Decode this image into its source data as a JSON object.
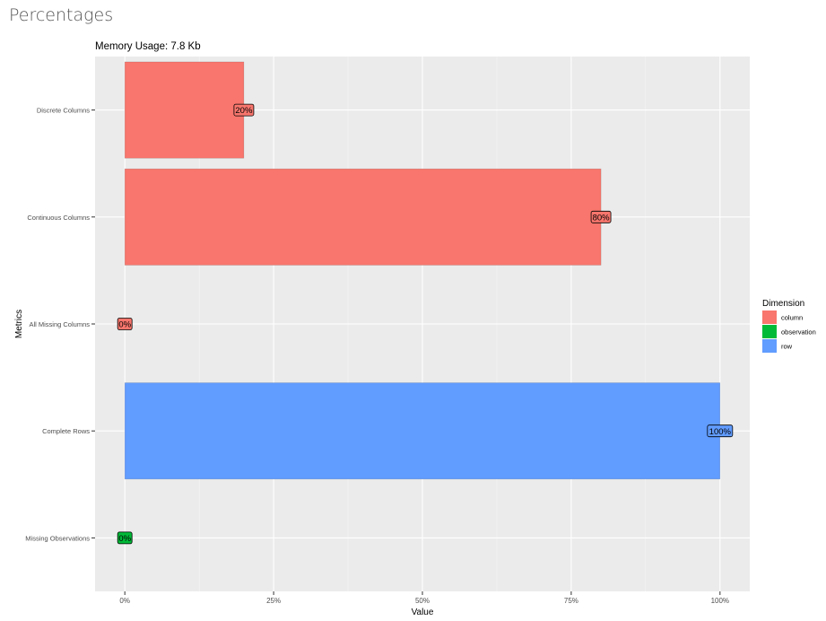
{
  "page": {
    "heading": "Percentages"
  },
  "chart_data": {
    "type": "bar",
    "orientation": "horizontal",
    "title": "Memory Usage: 7.8 Kb",
    "xlabel": "Value",
    "ylabel": "Metrics",
    "xlim": [
      -0.05,
      1.05
    ],
    "x_ticks": [
      0,
      0.25,
      0.5,
      0.75,
      1.0
    ],
    "x_tick_labels": [
      "0%",
      "25%",
      "50%",
      "75%",
      "100%"
    ],
    "grid": true,
    "legend": {
      "title": "Dimension",
      "position": "right",
      "entries": [
        {
          "name": "column",
          "color": "#F8766D"
        },
        {
          "name": "observation",
          "color": "#00BA38"
        },
        {
          "name": "row",
          "color": "#619CFF"
        }
      ]
    },
    "bars": [
      {
        "category": "Discrete Columns",
        "value": 0.2,
        "label": "20%",
        "dimension": "column"
      },
      {
        "category": "Continuous Columns",
        "value": 0.8,
        "label": "80%",
        "dimension": "column"
      },
      {
        "category": "All Missing Columns",
        "value": 0,
        "label": "0%",
        "dimension": "column"
      },
      {
        "category": "Complete Rows",
        "value": 1.0,
        "label": "100%",
        "dimension": "row"
      },
      {
        "category": "Missing Observations",
        "value": 0,
        "label": "0%",
        "dimension": "observation"
      }
    ]
  }
}
